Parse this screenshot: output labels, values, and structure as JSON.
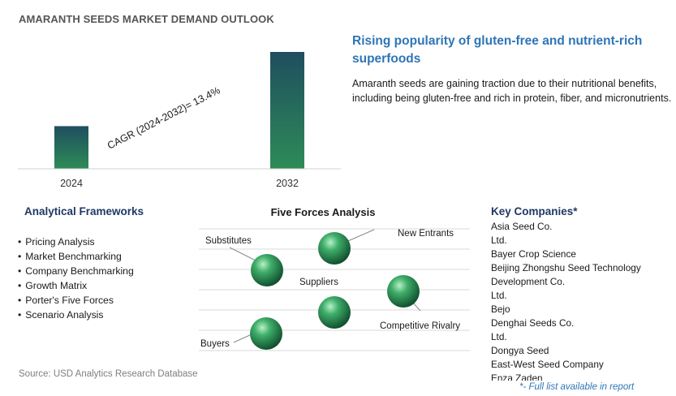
{
  "page_title": "AMARANTH SEEDS MARKET DEMAND OUTLOOK",
  "chart_data": {
    "type": "bar",
    "categories": [
      "2024",
      "2032"
    ],
    "values": [
      1,
      2.74
    ],
    "annotation": "CAGR (2024-2032)=   13.4%",
    "colors": {
      "bar_top": "#1f4e5f",
      "bar_bottom": "#2e8b57"
    }
  },
  "headline": "Rising popularity of gluten-free and nutrient-rich superfoods",
  "description": "Amaranth seeds are gaining traction due to their nutritional benefits, including being gluten-free and rich in protein, fiber, and micronutrients.",
  "analytical_frameworks": {
    "title": "Analytical Frameworks",
    "items": [
      "Pricing Analysis",
      "Market Benchmarking",
      "Company Benchmarking",
      "Growth Matrix",
      "Porter's Five Forces",
      "Scenario Analysis"
    ]
  },
  "five_forces": {
    "title": "Five Forces Analysis",
    "labels": {
      "substitutes": "Substitutes",
      "new_entrants": "New Entrants",
      "suppliers": "Suppliers",
      "competitive_rivalry": "Competitive Rivalry",
      "buyers": "Buyers"
    }
  },
  "key_companies": {
    "title": "Key Companies*",
    "lines": [
      "Asia Seed Co.",
      "Ltd.",
      "Bayer Crop Science",
      "Beijing Zhongshu Seed Technology",
      "Development Co.",
      "Ltd.",
      "Bejo",
      "Denghai Seeds Co.",
      "Ltd.",
      "Dongya Seed",
      "East-West Seed Company",
      "Enza Zaden"
    ]
  },
  "source": "Source: USD Analytics Research Database",
  "footnote": "*- Full list available in report"
}
